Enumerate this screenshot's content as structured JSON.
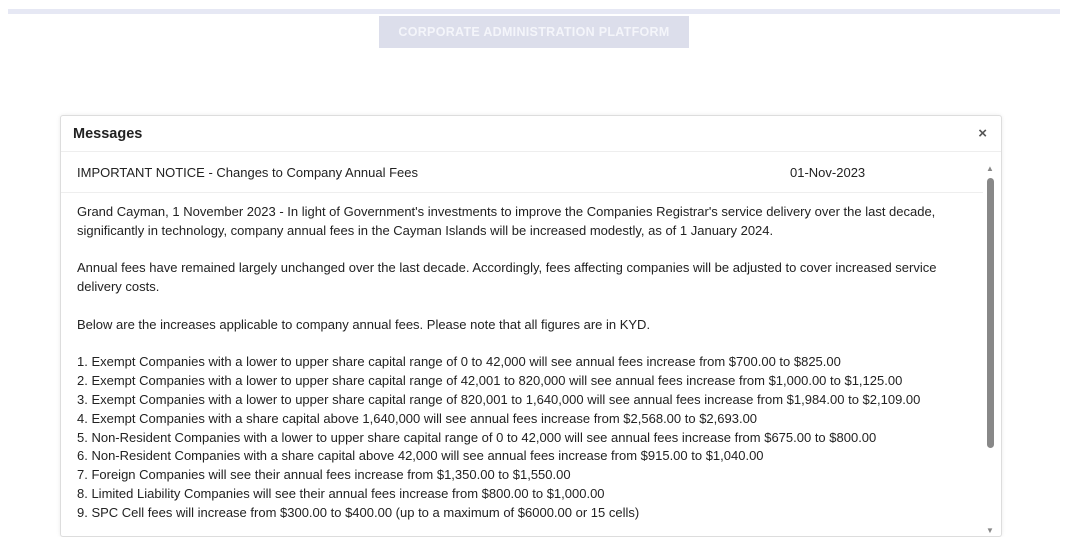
{
  "header": {
    "brand": "CORPORATE ADMINISTRATION PLATFORM"
  },
  "modal": {
    "title": "Messages",
    "close_icon": "×",
    "message": {
      "subject": "IMPORTANT NOTICE - Changes to Company Annual Fees",
      "date": "01-Nov-2023"
    },
    "paragraphs": [
      "Grand Cayman, 1 November 2023 - In light of Government's investments to improve the Companies Registrar's service delivery over the last decade, significantly in technology, company annual fees in the Cayman Islands will be increased modestly, as of 1 January 2024.",
      "Annual fees have remained largely unchanged over the last decade.  Accordingly, fees affecting companies will be adjusted to cover increased service delivery costs.",
      "Below are the increases applicable to company annual fees. Please note that all figures are in KYD."
    ],
    "list": [
      "1. Exempt Companies with a lower to upper share capital range of 0 to 42,000 will see annual fees increase from $700.00 to $825.00",
      "2. Exempt Companies with a lower to upper share capital range of 42,001 to 820,000 will see annual fees increase from $1,000.00 to $1,125.00",
      "3. Exempt Companies with a lower to upper share capital range of 820,001 to 1,640,000 will see annual fees increase from $1,984.00 to $2,109.00",
      "4. Exempt Companies with a share capital above 1,640,000 will see annual fees increase from $2,568.00 to $2,693.00",
      "5. Non-Resident Companies with a lower to upper share capital range of 0 to 42,000 will see annual fees increase from $675.00 to $800.00",
      "6. Non-Resident Companies with a share capital above 42,000 will see annual fees increase from $915.00 to $1,040.00",
      "7. Foreign Companies will see their annual fees increase from $1,350.00 to $1,550.00",
      "8. Limited Liability Companies will see their annual fees increase from $800.00 to $1,000.00",
      "9. SPC Cell fees will increase from $300.00 to $400.00 (up to a maximum of $6000.00 or 15 cells)"
    ],
    "scroll": {
      "up": "▲",
      "down": "▼"
    }
  }
}
